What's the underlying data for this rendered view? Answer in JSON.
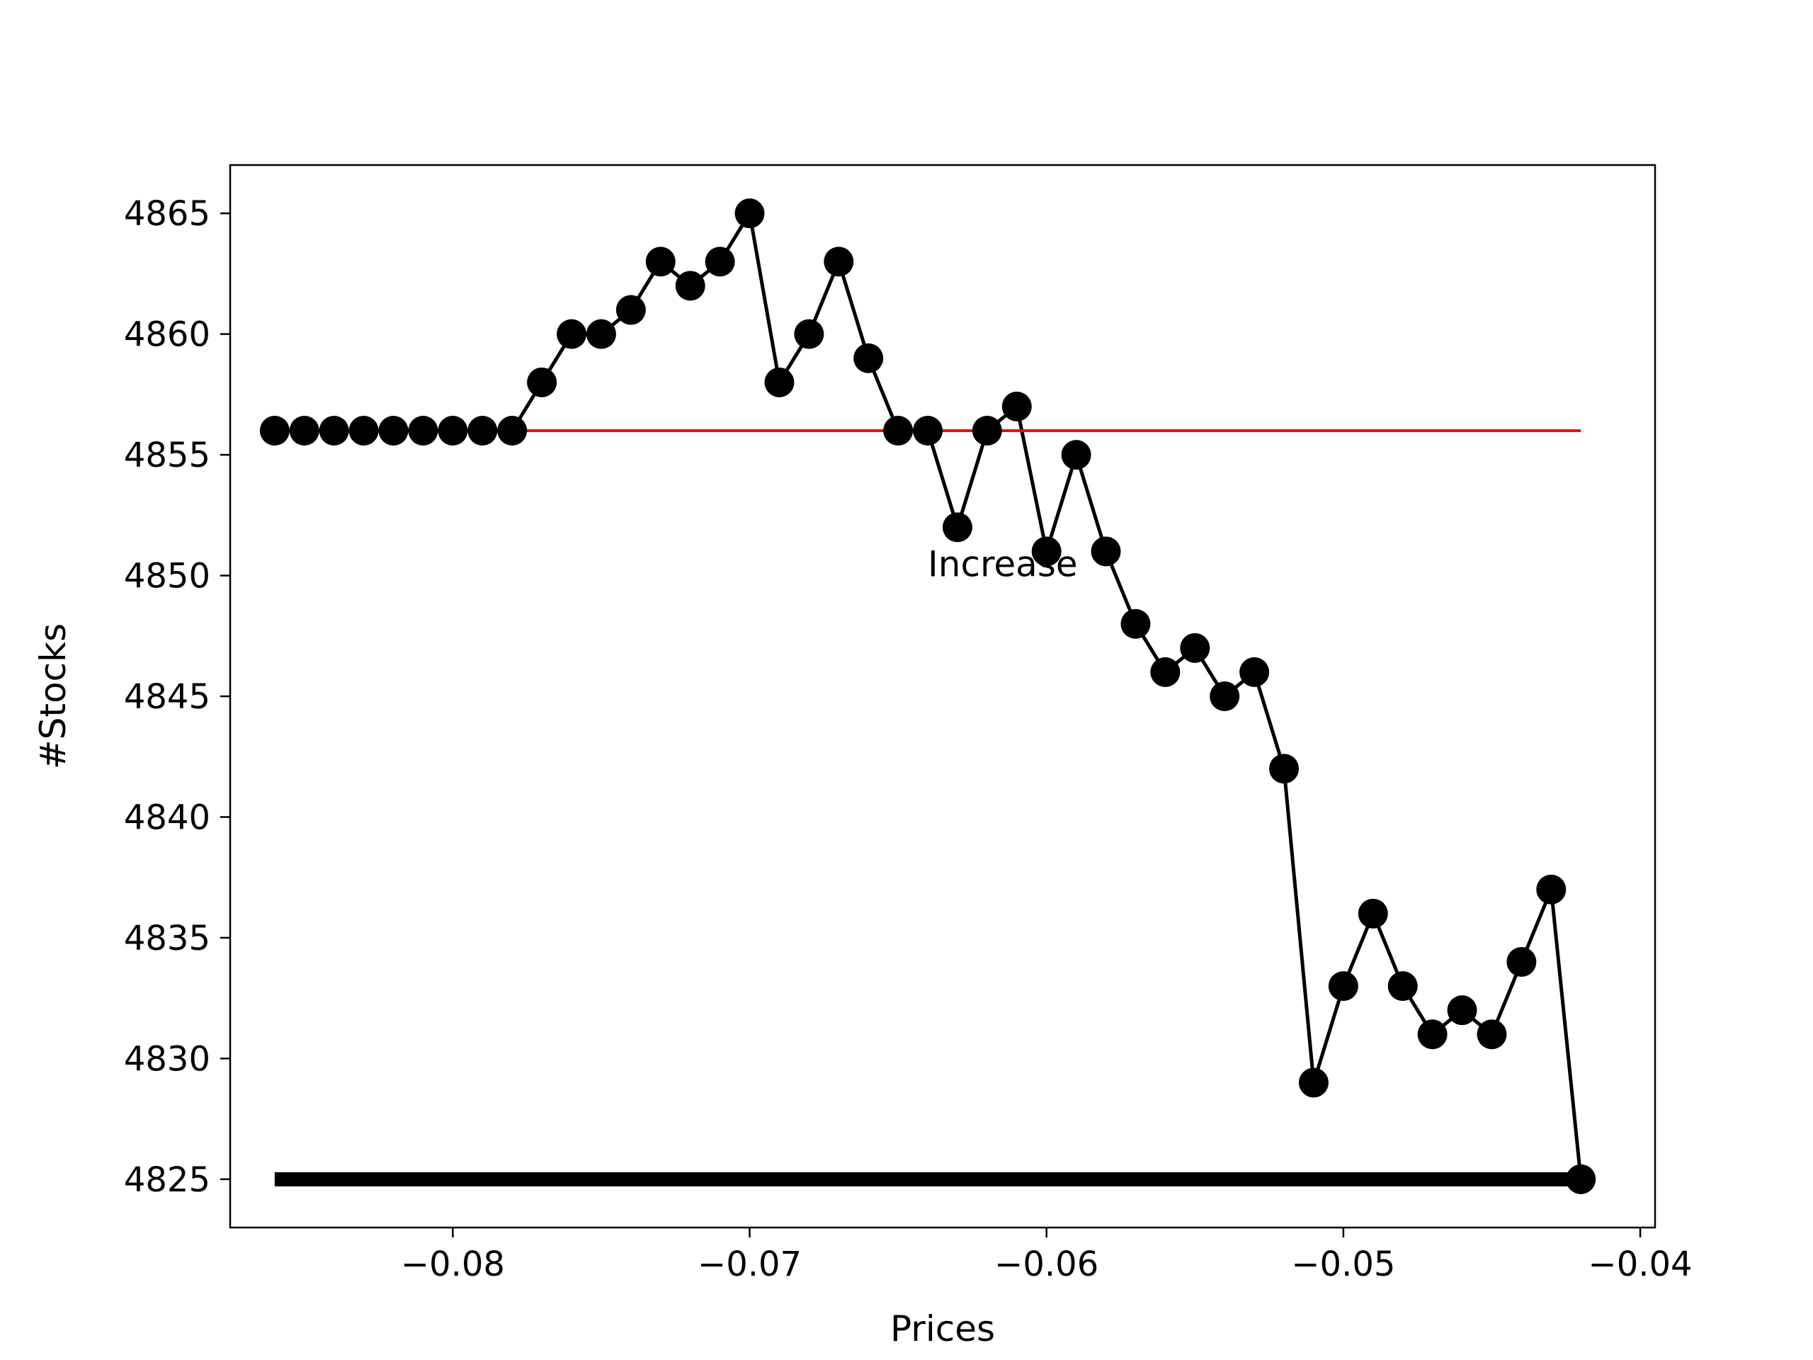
{
  "chart_data": {
    "type": "line",
    "xlabel": "Prices",
    "ylabel": "#Stocks",
    "xlim": [
      -0.0875,
      -0.0395
    ],
    "ylim": [
      4823,
      4867
    ],
    "xticks": [
      -0.08,
      -0.07,
      -0.06,
      -0.05,
      -0.04
    ],
    "xtick_labels": [
      "−0.08",
      "−0.07",
      "−0.06",
      "−0.05",
      "−0.04"
    ],
    "yticks": [
      4825,
      4830,
      4835,
      4840,
      4845,
      4850,
      4855,
      4860,
      4865
    ],
    "ytick_labels": [
      "4825",
      "4830",
      "4835",
      "4840",
      "4845",
      "4850",
      "4855",
      "4860",
      "4865"
    ],
    "series": [
      {
        "style": "line-markers",
        "color": "#000000",
        "x": [
          -0.086,
          -0.085,
          -0.084,
          -0.083,
          -0.082,
          -0.081,
          -0.08,
          -0.079,
          -0.078,
          -0.077,
          -0.076,
          -0.075,
          -0.074,
          -0.073,
          -0.072,
          -0.071,
          -0.07,
          -0.069,
          -0.068,
          -0.067,
          -0.066,
          -0.065,
          -0.064,
          -0.063,
          -0.062,
          -0.061,
          -0.06,
          -0.059,
          -0.058,
          -0.057,
          -0.056,
          -0.055,
          -0.054,
          -0.053,
          -0.052,
          -0.051,
          -0.05,
          -0.049,
          -0.048,
          -0.047,
          -0.046,
          -0.045,
          -0.044,
          -0.043,
          -0.042
        ],
        "y": [
          4856,
          4856,
          4856,
          4856,
          4856,
          4856,
          4856,
          4856,
          4856,
          4858,
          4860,
          4860,
          4861,
          4863,
          4862,
          4863,
          4865,
          4858,
          4860,
          4863,
          4859,
          4856,
          4856,
          4852,
          4856,
          4857,
          4851,
          4855,
          4851,
          4848,
          4846,
          4847,
          4845,
          4846,
          4842,
          4829,
          4833,
          4836,
          4833,
          4831,
          4832,
          4831,
          4834,
          4837,
          4825
        ]
      },
      {
        "style": "hline",
        "color": "#ff0000",
        "y": 4856,
        "x_range": [
          -0.086,
          -0.042
        ]
      },
      {
        "style": "hline-thick",
        "color": "#000000",
        "y": 4825,
        "x_range": [
          -0.086,
          -0.042
        ]
      }
    ],
    "annotations": [
      {
        "text": "Increase",
        "x": -0.064,
        "y": 4850.5
      }
    ],
    "grid": false,
    "legend": "none"
  }
}
